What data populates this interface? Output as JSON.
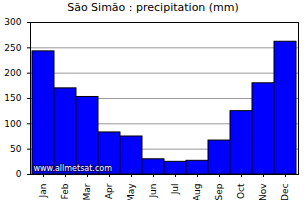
{
  "chart_data": {
    "type": "bar",
    "title": "São Simão : precipitation (mm)",
    "categories": [
      "Jan",
      "Feb",
      "Mar",
      "Apr",
      "May",
      "Jun",
      "Jul",
      "Aug",
      "Sep",
      "Oct",
      "Nov",
      "Dec"
    ],
    "values": [
      243,
      170,
      153,
      83,
      75,
      30,
      25,
      27,
      67,
      125,
      180,
      262
    ],
    "color": "#0000ff",
    "ylim": [
      0,
      300
    ],
    "yticks": [
      0,
      50,
      100,
      150,
      200,
      250,
      300
    ],
    "grid": true,
    "annotations": [
      "www.allmetsat.com"
    ]
  }
}
